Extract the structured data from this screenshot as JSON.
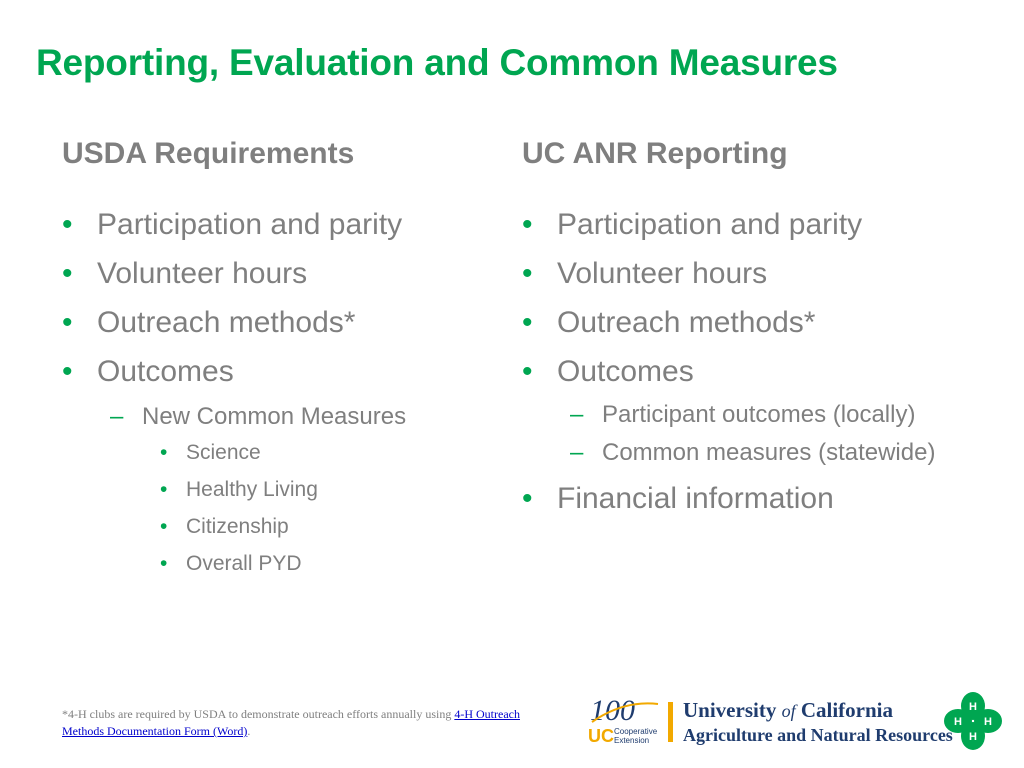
{
  "title": "Reporting, Evaluation and Common Measures",
  "left_column": {
    "heading": "USDA Requirements",
    "items": [
      "Participation and parity",
      "Volunteer hours",
      "Outreach methods*",
      "Outcomes"
    ],
    "sub_item": "New Common Measures",
    "sub_sub_items": [
      "Science",
      "Healthy Living",
      "Citizenship",
      "Overall PYD"
    ]
  },
  "right_column": {
    "heading": "UC ANR Reporting",
    "items": [
      "Participation and parity",
      "Volunteer hours",
      "Outreach methods*",
      "Outcomes"
    ],
    "sub_items": [
      "Participant outcomes (locally)",
      "Common measures (statewide)"
    ],
    "last_item": "Financial information"
  },
  "footnote": {
    "text": "*4-H clubs are required by USDA to demonstrate outreach efforts annually using",
    "link": "4-H Outreach Methods Documentation Form (Word)",
    "end": "."
  },
  "logos": {
    "centennial_number": "100",
    "uc_short": "UC",
    "cooperative": "Cooperative",
    "extension": "Extension",
    "university_name_1": "University",
    "university_of": "of",
    "university_name_2": "California",
    "division": "Agriculture and Natural Resources",
    "clover_letter": "H"
  },
  "colors": {
    "accent": "#00a651",
    "text": "#7f7f7f",
    "uc_blue": "#1f3c6e",
    "uc_gold": "#f2a900"
  }
}
